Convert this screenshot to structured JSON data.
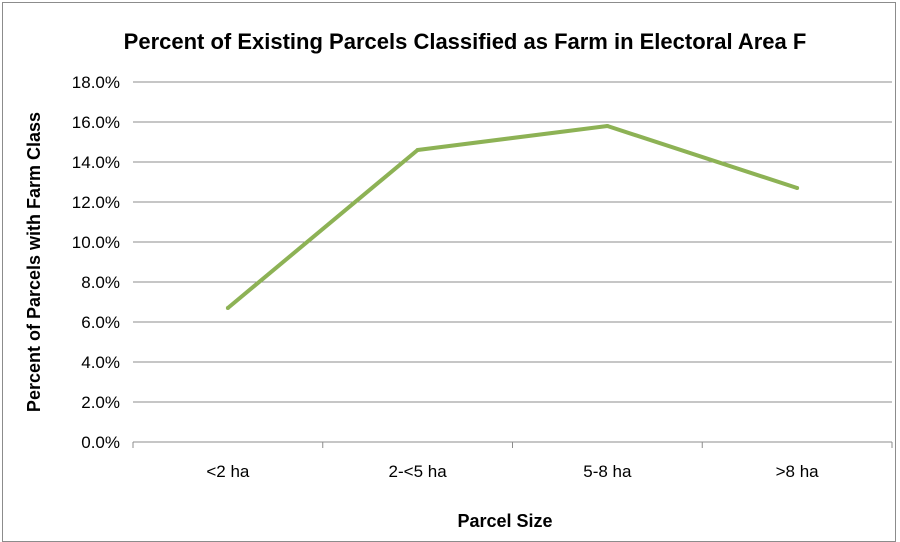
{
  "chart_data": {
    "type": "line",
    "title": "Percent of Existing Parcels Classified as Farm in Electoral Area F",
    "xlabel": "Parcel Size",
    "ylabel": "Percent of Parcels with Farm  Class",
    "categories": [
      "<2 ha",
      "2-<5 ha",
      "5-8 ha",
      ">8 ha"
    ],
    "series": [
      {
        "values": [
          6.7,
          14.6,
          15.8,
          12.7
        ]
      }
    ],
    "ylim": [
      0,
      18
    ],
    "yticks": [
      0,
      2,
      4,
      6,
      8,
      10,
      12,
      14,
      16,
      18
    ],
    "ytick_labels": [
      "0.0%",
      "2.0%",
      "4.0%",
      "6.0%",
      "8.0%",
      "10.0%",
      "12.0%",
      "14.0%",
      "16.0%",
      "18.0%"
    ],
    "grid": true,
    "legend": "none",
    "colors": {
      "line": "#8db255",
      "grid": "#8c8c8c"
    }
  }
}
